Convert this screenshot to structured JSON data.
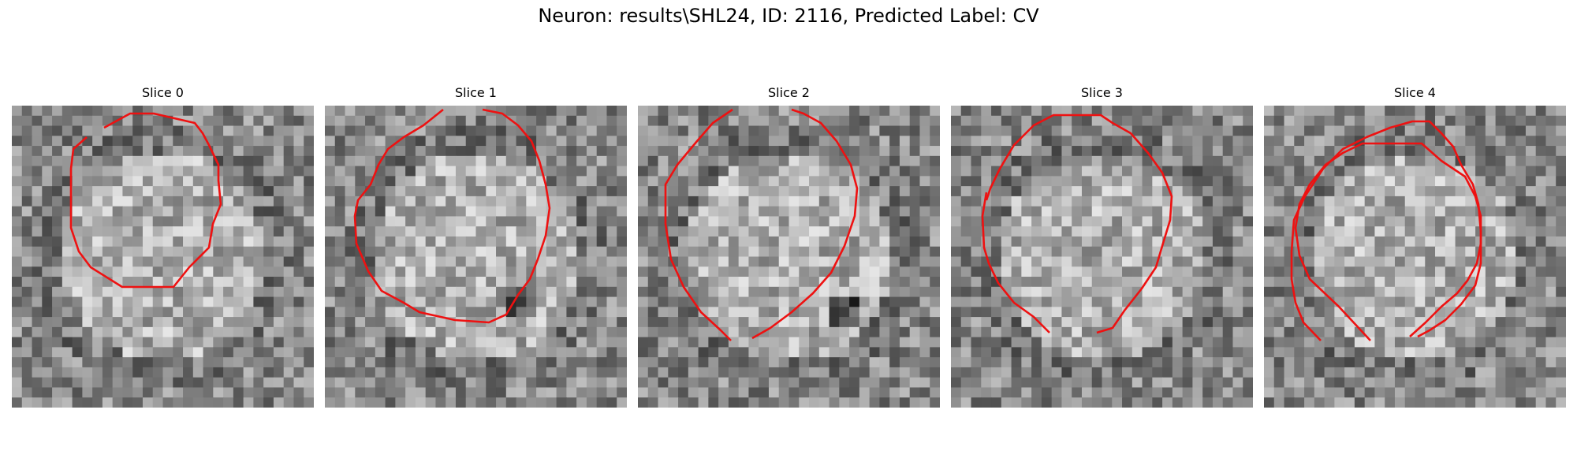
{
  "figure": {
    "title": "Neuron: results\\SHL24, ID: 2116, Predicted Label: CV"
  },
  "colors": {
    "contour": "#ee1111",
    "background": "#ffffff"
  },
  "panels": [
    {
      "title": "Slice 0"
    },
    {
      "title": "Slice 1"
    },
    {
      "title": "Slice 2"
    },
    {
      "title": "Slice 3"
    },
    {
      "title": "Slice 4"
    }
  ]
}
